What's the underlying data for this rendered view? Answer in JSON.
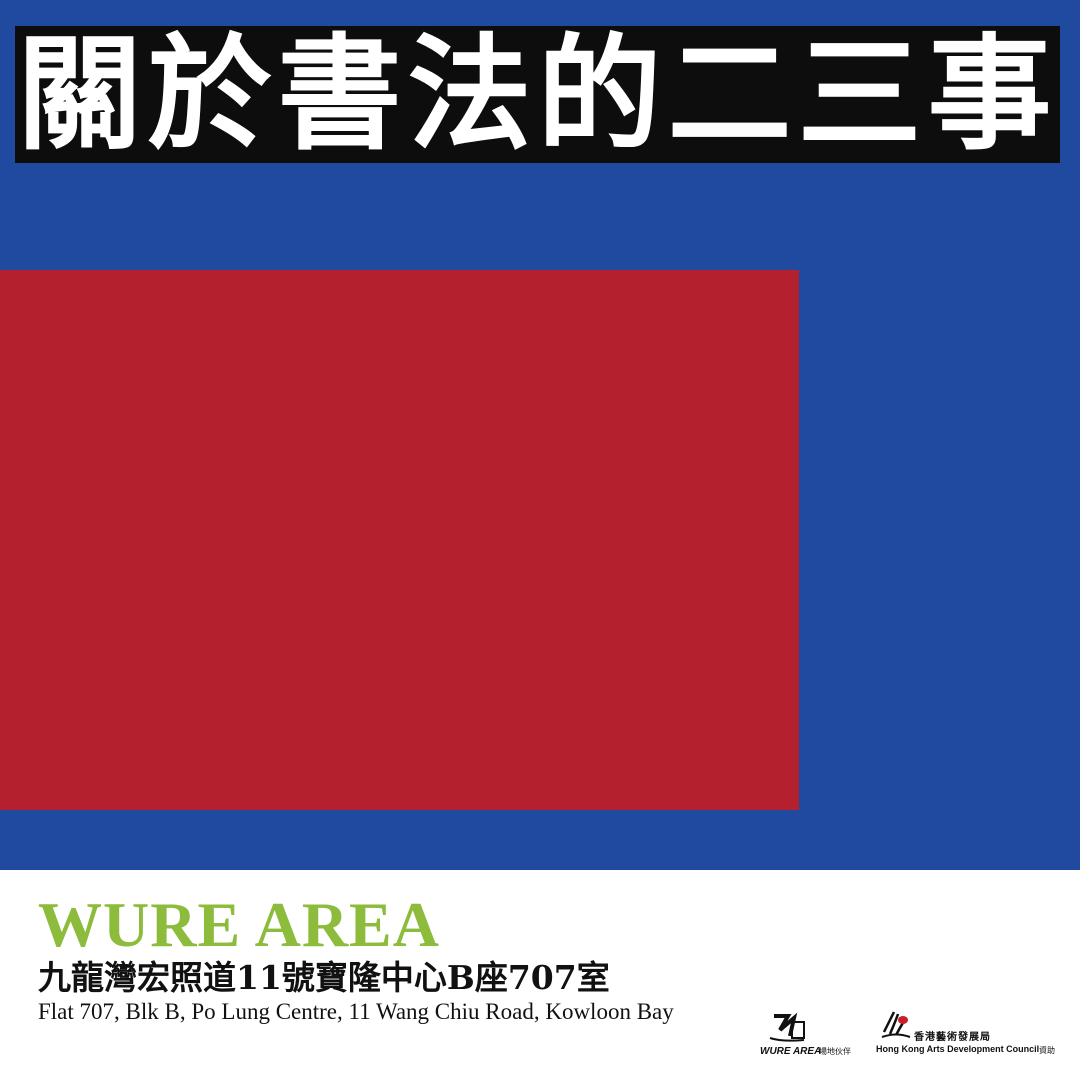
{
  "poster": {
    "title": "關於書法的二三事",
    "colors": {
      "blue": "#1f4a9f",
      "red": "#b5202e",
      "title_bar": "#0d0d0d",
      "venue_green": "#8dbb3c"
    }
  },
  "venue": {
    "name": "WURE AREA",
    "address_zh": "九龍灣宏照道11號寶隆中心B座707室",
    "address_en": "Flat 707, Blk B, Po Lung Centre, 11 Wang Chiu Road, Kowloon Bay"
  },
  "logos": {
    "venue_partner": {
      "name": "WURE AREA",
      "role": "場地伙伴",
      "icon": "wure-area-logo-icon"
    },
    "sponsor": {
      "name_zh": "香港藝術發展局",
      "name_en": "Hong Kong Arts Development Council",
      "role": "資助",
      "icon": "hkadc-logo-icon"
    }
  }
}
